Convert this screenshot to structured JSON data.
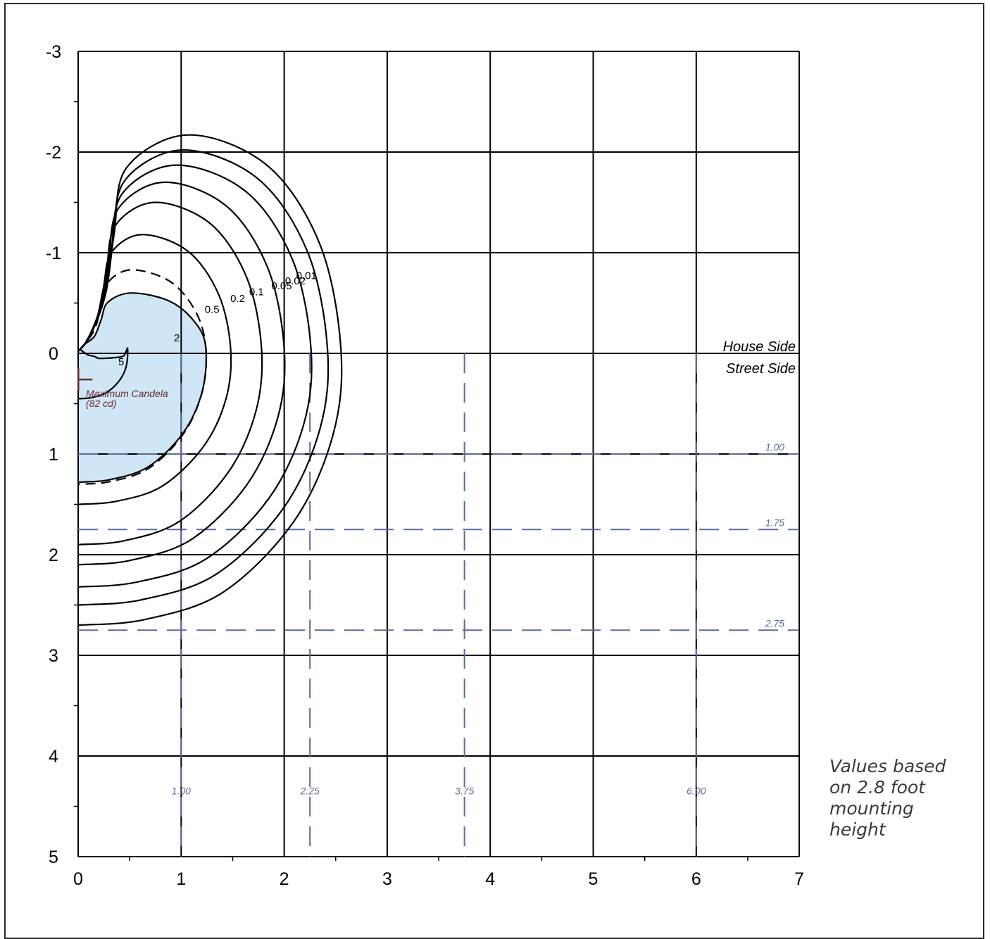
{
  "chart_data": {
    "type": "isofootcandle",
    "title": "",
    "xlabel": "",
    "ylabel": "",
    "xlim": [
      0,
      7
    ],
    "ylim": [
      -3,
      5
    ],
    "x_ticks": [
      "0",
      "1",
      "2",
      "3",
      "4",
      "5",
      "6",
      "7"
    ],
    "y_ticks": [
      "-3",
      "-2",
      "-1",
      "0",
      "1",
      "2",
      "3",
      "4",
      "5"
    ],
    "contour_labels": [
      "0.01",
      "0.02",
      "0.05",
      "0.1",
      "0.2",
      "0.5",
      "2",
      "5"
    ],
    "contour_label_values": [
      0.01,
      0.02,
      0.05,
      0.1,
      0.2,
      0.5,
      2,
      5
    ],
    "contours": [
      {
        "level": "0.01",
        "extent_x": 2.55,
        "top_y": -2.17,
        "bottom_y": 2.7
      },
      {
        "level": "0.02",
        "extent_x": 2.42,
        "top_y": -2.02,
        "bottom_y": 2.5
      },
      {
        "level": "0.05",
        "extent_x": 2.26,
        "top_y": -1.87,
        "bottom_y": 2.32
      },
      {
        "level": "0.1",
        "extent_x": 2.0,
        "top_y": -1.7,
        "bottom_y": 2.1
      },
      {
        "level": "0.2",
        "extent_x": 1.78,
        "top_y": -1.5,
        "bottom_y": 1.9
      },
      {
        "level": "0.5",
        "extent_x": 1.48,
        "top_y": -1.18,
        "bottom_y": 1.5
      },
      {
        "level": "1",
        "extent_x": 1.24,
        "top_y": -0.83,
        "bottom_y": 1.3
      },
      {
        "level": "2",
        "extent_x": 1.24,
        "top_y": -0.6,
        "bottom_y": 1.28
      },
      {
        "level": "5",
        "extent_x": 0.48,
        "top_y": 0.05,
        "bottom_y": 0.45
      }
    ],
    "house_side_label": "House Side",
    "street_side_label": "Street Side",
    "max_candela_label": "Maximum Candela",
    "max_candela_value": "(82 cd)",
    "max_candela_point": [
      0.05,
      0.25
    ],
    "horizontal_refs": [
      {
        "y": 1.0,
        "label": "1.00"
      },
      {
        "y": 1.75,
        "label": "1.75"
      },
      {
        "y": 2.75,
        "label": "2.75"
      }
    ],
    "vertical_refs": [
      {
        "x": 1.0,
        "label": "1.00"
      },
      {
        "x": 2.25,
        "label": "2.25"
      },
      {
        "x": 3.75,
        "label": "3.75"
      },
      {
        "x": 6.0,
        "label": "6.00"
      }
    ],
    "shaded_region": "2 fc contour",
    "colors": {
      "grid": "#000000",
      "reference": "#5b6b99",
      "fill": "#cfe6f7",
      "marker": "#6b2a2a"
    }
  },
  "note": {
    "lines": [
      "Values based",
      "on 2.8 foot",
      "mounting",
      "height"
    ]
  }
}
